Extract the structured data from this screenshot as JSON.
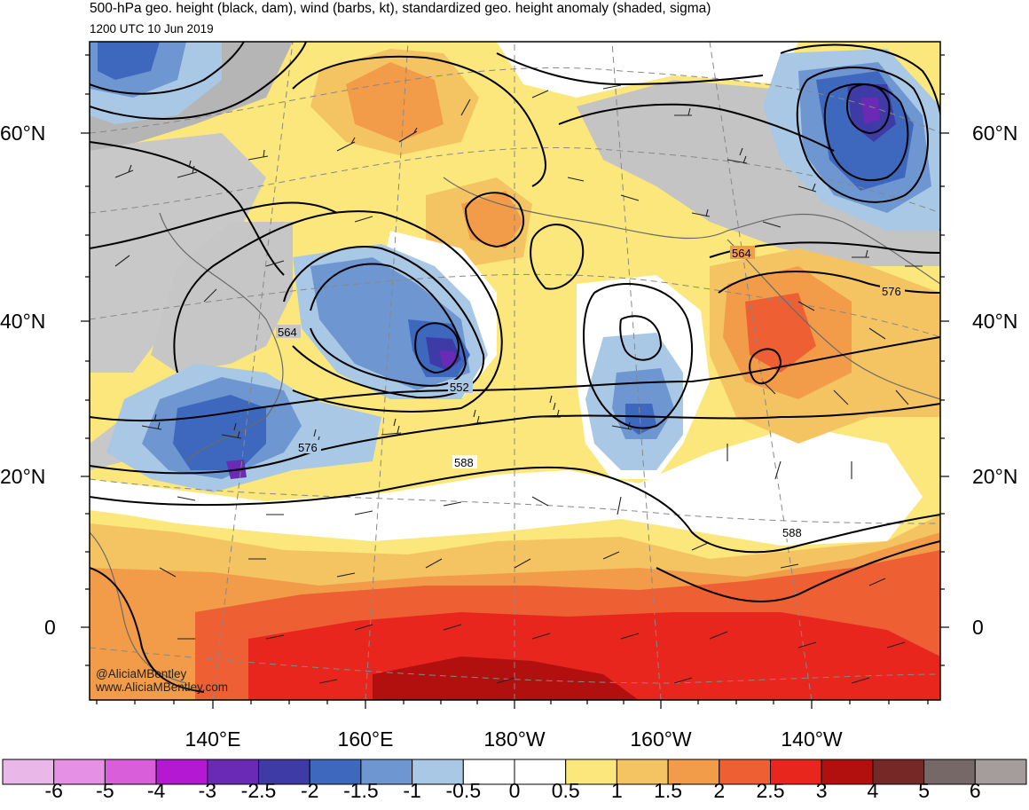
{
  "header": {
    "title": "500-hPa geo. height (black, dam), wind (barbs, kt), standardized geo. height anomaly (shaded, sigma)",
    "valid_time": "1200 UTC 10 Jun 2019"
  },
  "lat_axis": {
    "labels": [
      "60°N",
      "40°N",
      "20°N",
      "0"
    ]
  },
  "lon_axis": {
    "labels": [
      "140°E",
      "160°E",
      "180°W",
      "160°W",
      "140°W"
    ]
  },
  "contour_labels": [
    "564",
    "564",
    "576",
    "552",
    "576",
    "588",
    "588"
  ],
  "colorbar": {
    "labels": [
      "-6",
      "-5",
      "-4",
      "-3",
      "-2.5",
      "-2",
      "-1.5",
      "-1",
      "-0.5",
      "0",
      "0.5",
      "1",
      "1.5",
      "2",
      "2.5",
      "3",
      "4",
      "5",
      "6"
    ],
    "colors": [
      "#e9b8e8",
      "#e590e4",
      "#d95ed9",
      "#b418d2",
      "#6a2ab6",
      "#3e3aa6",
      "#3e68bd",
      "#6e96d0",
      "#a8c8e6",
      "#ffffff",
      "#ffffff",
      "#fbe77b",
      "#f5c462",
      "#f29c4a",
      "#ef5f34",
      "#e8261e",
      "#b2100e",
      "#742927",
      "#756867",
      "#a59c9c"
    ]
  },
  "credits": {
    "handle": "@AliciaMBentley",
    "website": "www.AliciaMBentley.com"
  }
}
